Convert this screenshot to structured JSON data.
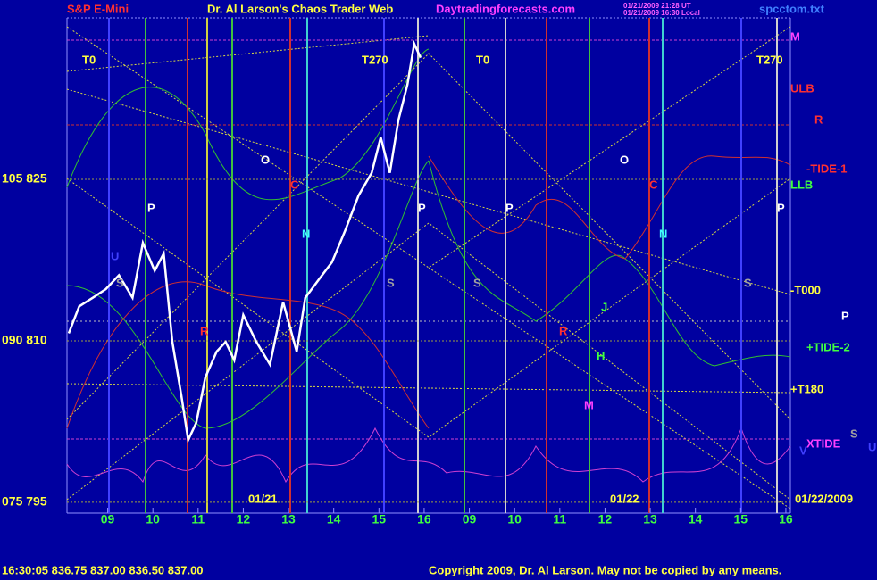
{
  "chart_data": {
    "type": "line",
    "title": "S&P E-Mini",
    "subtitle": "Dr. Al Larson's Chaos Trader Web",
    "site": "Daytradingforecasts.com",
    "timestamps": [
      "01/21/2009 21:28 UT",
      "01/21/2009 16:30 Local"
    ],
    "file": "spcctom.txt",
    "x": [
      8.14,
      8.37,
      8.67,
      8.96,
      9.25,
      9.55,
      9.78,
      10.04,
      10.24,
      10.43,
      10.63,
      10.78,
      10.96,
      11.16,
      11.41,
      11.61,
      11.8,
      12.0,
      12.29,
      12.59,
      12.88,
      13.18,
      13.37,
      13.67,
      13.96,
      14.25,
      14.55,
      14.84,
      15.04,
      15.24,
      15.43,
      15.63,
      15.78,
      15.92
    ],
    "series": [
      {
        "color": "#ffffff",
        "values": [
          810.7,
          813.2,
          814.0,
          814.8,
          816.1,
          814.0,
          819.1,
          816.5,
          818.1,
          809.9,
          804.9,
          800.8,
          802.4,
          806.6,
          809.0,
          809.9,
          808.2,
          812.4,
          809.9,
          807.8,
          813.6,
          809.0,
          814.0,
          815.7,
          817.3,
          820.2,
          823.5,
          825.6,
          828.9,
          825.6,
          830.5,
          833.8,
          837.6,
          836.3
        ]
      }
    ],
    "xlim": [
      8.1,
      24.1
    ],
    "xticks": [
      {
        "value": 9,
        "label": "09"
      },
      10,
      11,
      12,
      13,
      14,
      15,
      16,
      {
        "value": 17,
        "label": "09"
      },
      {
        "value": 18,
        "label": "10"
      },
      {
        "value": 19,
        "label": "11"
      },
      {
        "value": 20,
        "label": "12"
      },
      {
        "value": 21,
        "label": "13"
      },
      {
        "value": 22,
        "label": "14"
      },
      {
        "value": 23,
        "label": "15"
      },
      {
        "value": 24,
        "label": "16"
      }
    ],
    "ylim": [
      794,
      840
    ],
    "yticks": [
      {
        "value": 795,
        "label": "075  795"
      },
      {
        "value": 810,
        "label": "090  810"
      },
      {
        "value": 825,
        "label": "105  825"
      }
    ],
    "grid": true,
    "annotations": [
      "T0",
      "T270",
      "T0",
      "T270",
      "M",
      "ULB",
      "R",
      "-TIDE-1",
      "LLB",
      "-T000",
      "P",
      "+TIDE-2",
      "+T180",
      "XTIDE",
      "S",
      "U",
      "V",
      "O",
      "C",
      "P",
      "N",
      "U",
      "S",
      "R",
      "P",
      "S",
      "O",
      "C",
      "P",
      "N",
      "S",
      "J",
      "R",
      "H",
      "M",
      "P",
      "S",
      "01/21",
      "01/22",
      "01/22/2009"
    ],
    "quote": "16:30:05  836.75 837.00 836.50 837.00",
    "copyright": "Copyright 2009, Dr. Al Larson. May not be copied by any means."
  }
}
